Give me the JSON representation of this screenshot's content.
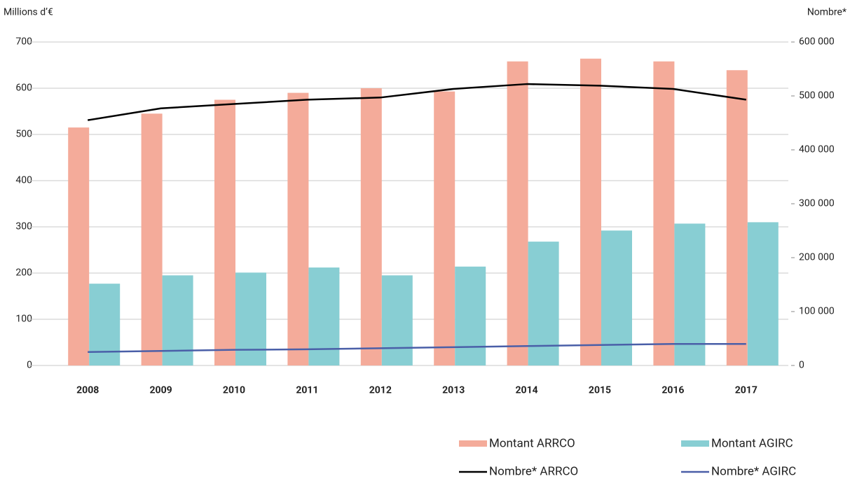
{
  "chart_data": {
    "type": "bar",
    "y_label": "Millions d’€",
    "y2_label": "Nombre*",
    "categories": [
      "2008",
      "2009",
      "2010",
      "2011",
      "2012",
      "2013",
      "2014",
      "2015",
      "2016",
      "2017"
    ],
    "series": [
      {
        "name": "Montant ARRCO",
        "type": "bar",
        "color": "#f4ab9a",
        "values": [
          515,
          545,
          575,
          590,
          600,
          593,
          658,
          664,
          658,
          639
        ]
      },
      {
        "name": "Montant AGIRC",
        "type": "bar",
        "color": "#88ced3",
        "values": [
          177,
          195,
          201,
          212,
          195,
          214,
          268,
          292,
          307,
          310
        ]
      },
      {
        "name": "Nombre* ARRCO",
        "type": "line",
        "axis": "y2",
        "color": "#000000",
        "values": [
          455000,
          477000,
          485000,
          493000,
          497000,
          513000,
          522000,
          519000,
          513000,
          493000
        ]
      },
      {
        "name": "Nombre* AGIRC",
        "type": "line",
        "axis": "y2",
        "color": "#4a5fa8",
        "values": [
          25000,
          27000,
          29000,
          30000,
          32000,
          34000,
          36000,
          38000,
          40000,
          40000
        ]
      }
    ],
    "ylim": [
      0,
      700
    ],
    "yticks": [
      0,
      100,
      200,
      300,
      400,
      500,
      600,
      700
    ],
    "y2lim": [
      0,
      600000
    ],
    "y2ticks": [
      0,
      {
        "value": 100000,
        "label": "100 000"
      },
      {
        "value": 200000,
        "label": "200 000"
      },
      {
        "value": 300000,
        "label": "300 000"
      },
      {
        "value": 400000,
        "label": "400 000"
      },
      {
        "value": 500000,
        "label": "500 000"
      },
      {
        "value": 600000,
        "label": "600 000"
      }
    ],
    "grid": true
  }
}
